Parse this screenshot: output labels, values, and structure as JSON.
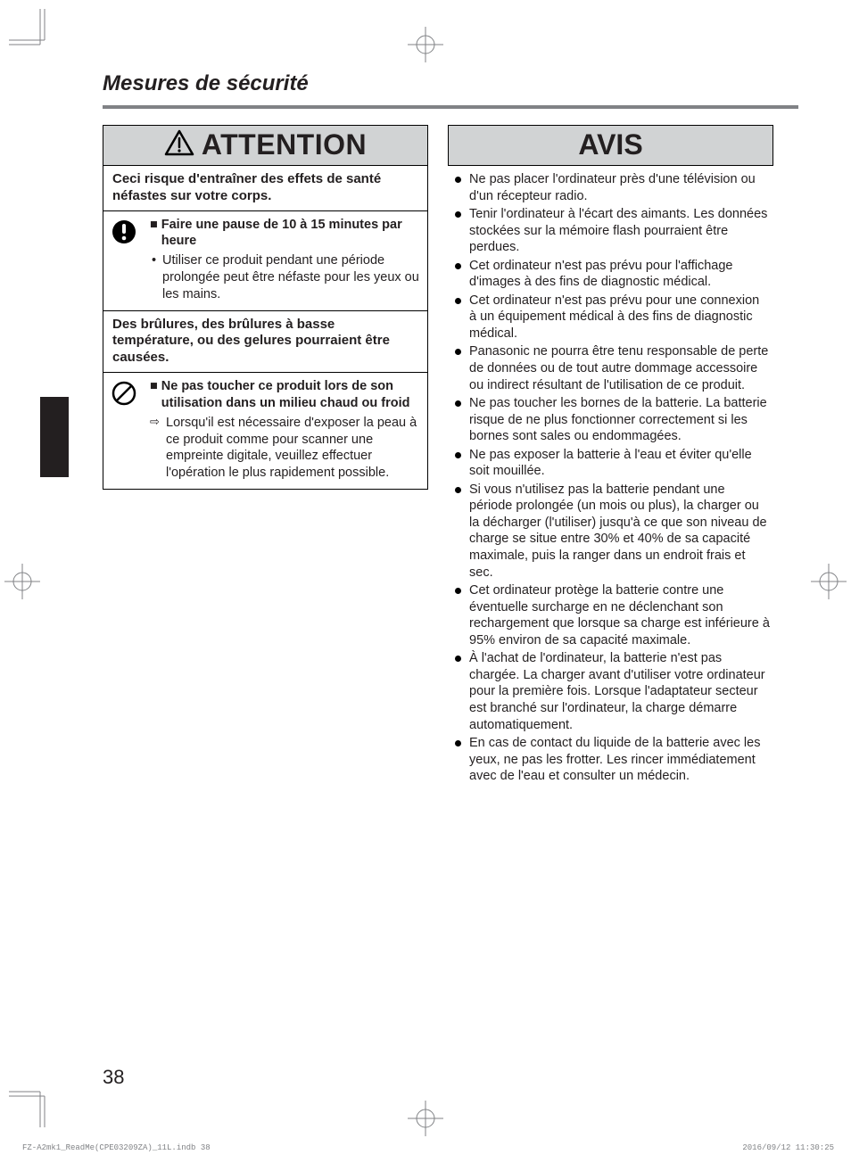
{
  "page": {
    "title": "Mesures de sécurité",
    "number": "38"
  },
  "attention": {
    "header": "ATTENTION",
    "section1": {
      "intro": "Ceci risque d'entraîner des effets de santé néfastes sur votre corps.",
      "item_title": "Faire une pause de 10 à 15 minutes par heure",
      "item_bullet": "Utiliser ce produit pendant une période prolongée peut être néfaste pour les yeux ou les mains."
    },
    "section2": {
      "intro": "Des brûlures, des brûlures à basse température, ou des gelures pourraient être causées.",
      "item_title": "Ne pas toucher ce produit lors de son utilisation dans un milieu chaud ou froid",
      "item_arrow": "Lorsqu'il est nécessaire d'exposer la peau à ce produit comme pour scanner une empreinte digitale, veuillez effectuer l'opération le plus rapidement possible."
    }
  },
  "avis": {
    "header": "AVIS",
    "items": [
      "Ne pas placer l'ordinateur près d'une télévision ou d'un récepteur radio.",
      "Tenir l'ordinateur à l'écart des aimants. Les données stockées sur la mémoire flash pourraient être perdues.",
      "Cet ordinateur n'est pas prévu pour l'affichage d'images à des fins de diagnostic médical.",
      "Cet ordinateur n'est pas prévu pour une connexion à un équipement médical à des fins de diagnostic médical.",
      "Panasonic ne pourra être tenu responsable de perte de données ou de tout autre dommage accessoire ou indirect résultant de l'utilisation de ce produit.",
      "Ne pas toucher les bornes de la batterie. La batterie risque de ne plus fonctionner correctement si les bornes sont sales ou endommagées.",
      "Ne pas exposer la batterie à l'eau et éviter qu'elle soit mouillée.",
      "Si vous n'utilisez pas la batterie pendant une période prolongée (un mois ou plus), la charger ou la décharger (l'utiliser) jusqu'à ce que son niveau de charge se situe entre 30% et 40% de sa capacité maximale, puis la ranger dans un endroit frais et sec.",
      "Cet ordinateur protège la batterie contre une éventuelle surcharge en ne déclenchant son rechargement que lorsque sa charge est inférieure à 95% environ de sa capacité maximale.",
      "À l'achat de l'ordinateur, la batterie n'est pas chargée. La charger avant d'utiliser votre ordinateur pour la première fois. Lorsque l'adaptateur secteur est branché sur l'ordinateur, la charge démarre automatiquement.",
      "En cas de contact du liquide de la batterie avec les yeux, ne pas les frotter. Les rincer immédiatement avec de l'eau et consulter un médecin."
    ]
  },
  "footer": {
    "left": "FZ-A2mk1_ReadMe(CPE03209ZA)_11L.indb   38",
    "right": "2016/09/12   11:30:25"
  },
  "colors": {
    "header_bg": "#d1d3d4",
    "rule": "#808285",
    "text": "#231f20"
  }
}
